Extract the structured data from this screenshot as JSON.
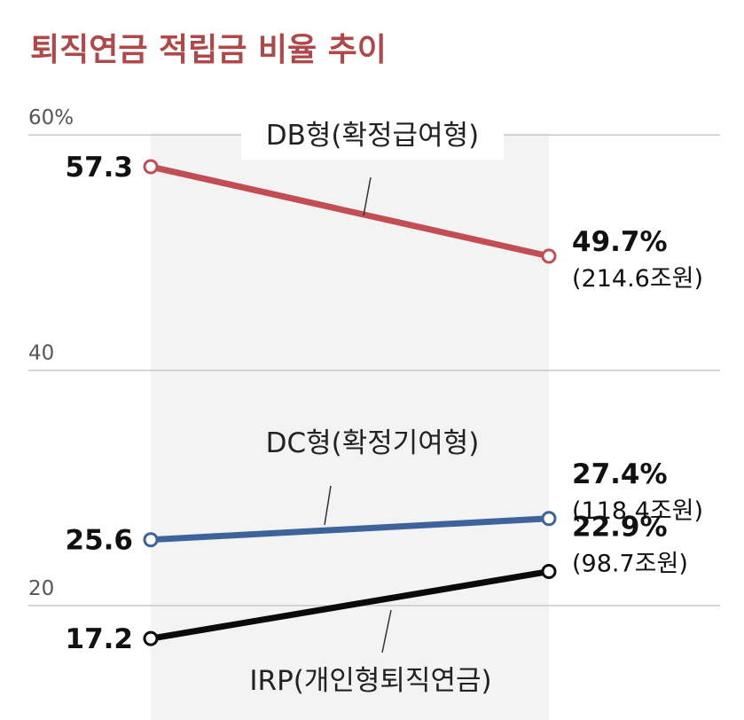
{
  "colors": {
    "title": "#b0484a",
    "db": "#c24d53",
    "dc": "#3d639a",
    "irp": "#0a0a0a",
    "grid": "#c9c9c9",
    "band": "#f3f3f3"
  },
  "chart_data": {
    "type": "line",
    "title": "퇴직연금 적립금 비율 추이",
    "ylim": [
      0,
      60
    ],
    "y_ticks": [
      {
        "value": 60,
        "label": "60%"
      },
      {
        "value": 40,
        "label": "40"
      },
      {
        "value": 20,
        "label": "20"
      }
    ],
    "grid": true,
    "series": [
      {
        "key": "db",
        "name": "DB형(확정급여형)",
        "values": [
          57.3,
          49.7
        ],
        "start_label": "57.3",
        "end_label": "49.7%",
        "end_sub": "(214.6조원)"
      },
      {
        "key": "dc",
        "name": "DC형(확정기여형)",
        "values": [
          25.6,
          27.4
        ],
        "start_label": "25.6",
        "end_label": "27.4%",
        "end_sub": "(118.4조원)"
      },
      {
        "key": "irp",
        "name": "IRP(개인형퇴직연금)",
        "values": [
          17.2,
          22.9
        ],
        "start_label": "17.2",
        "end_label": "22.9%",
        "end_sub": "(98.7조원)"
      }
    ]
  }
}
